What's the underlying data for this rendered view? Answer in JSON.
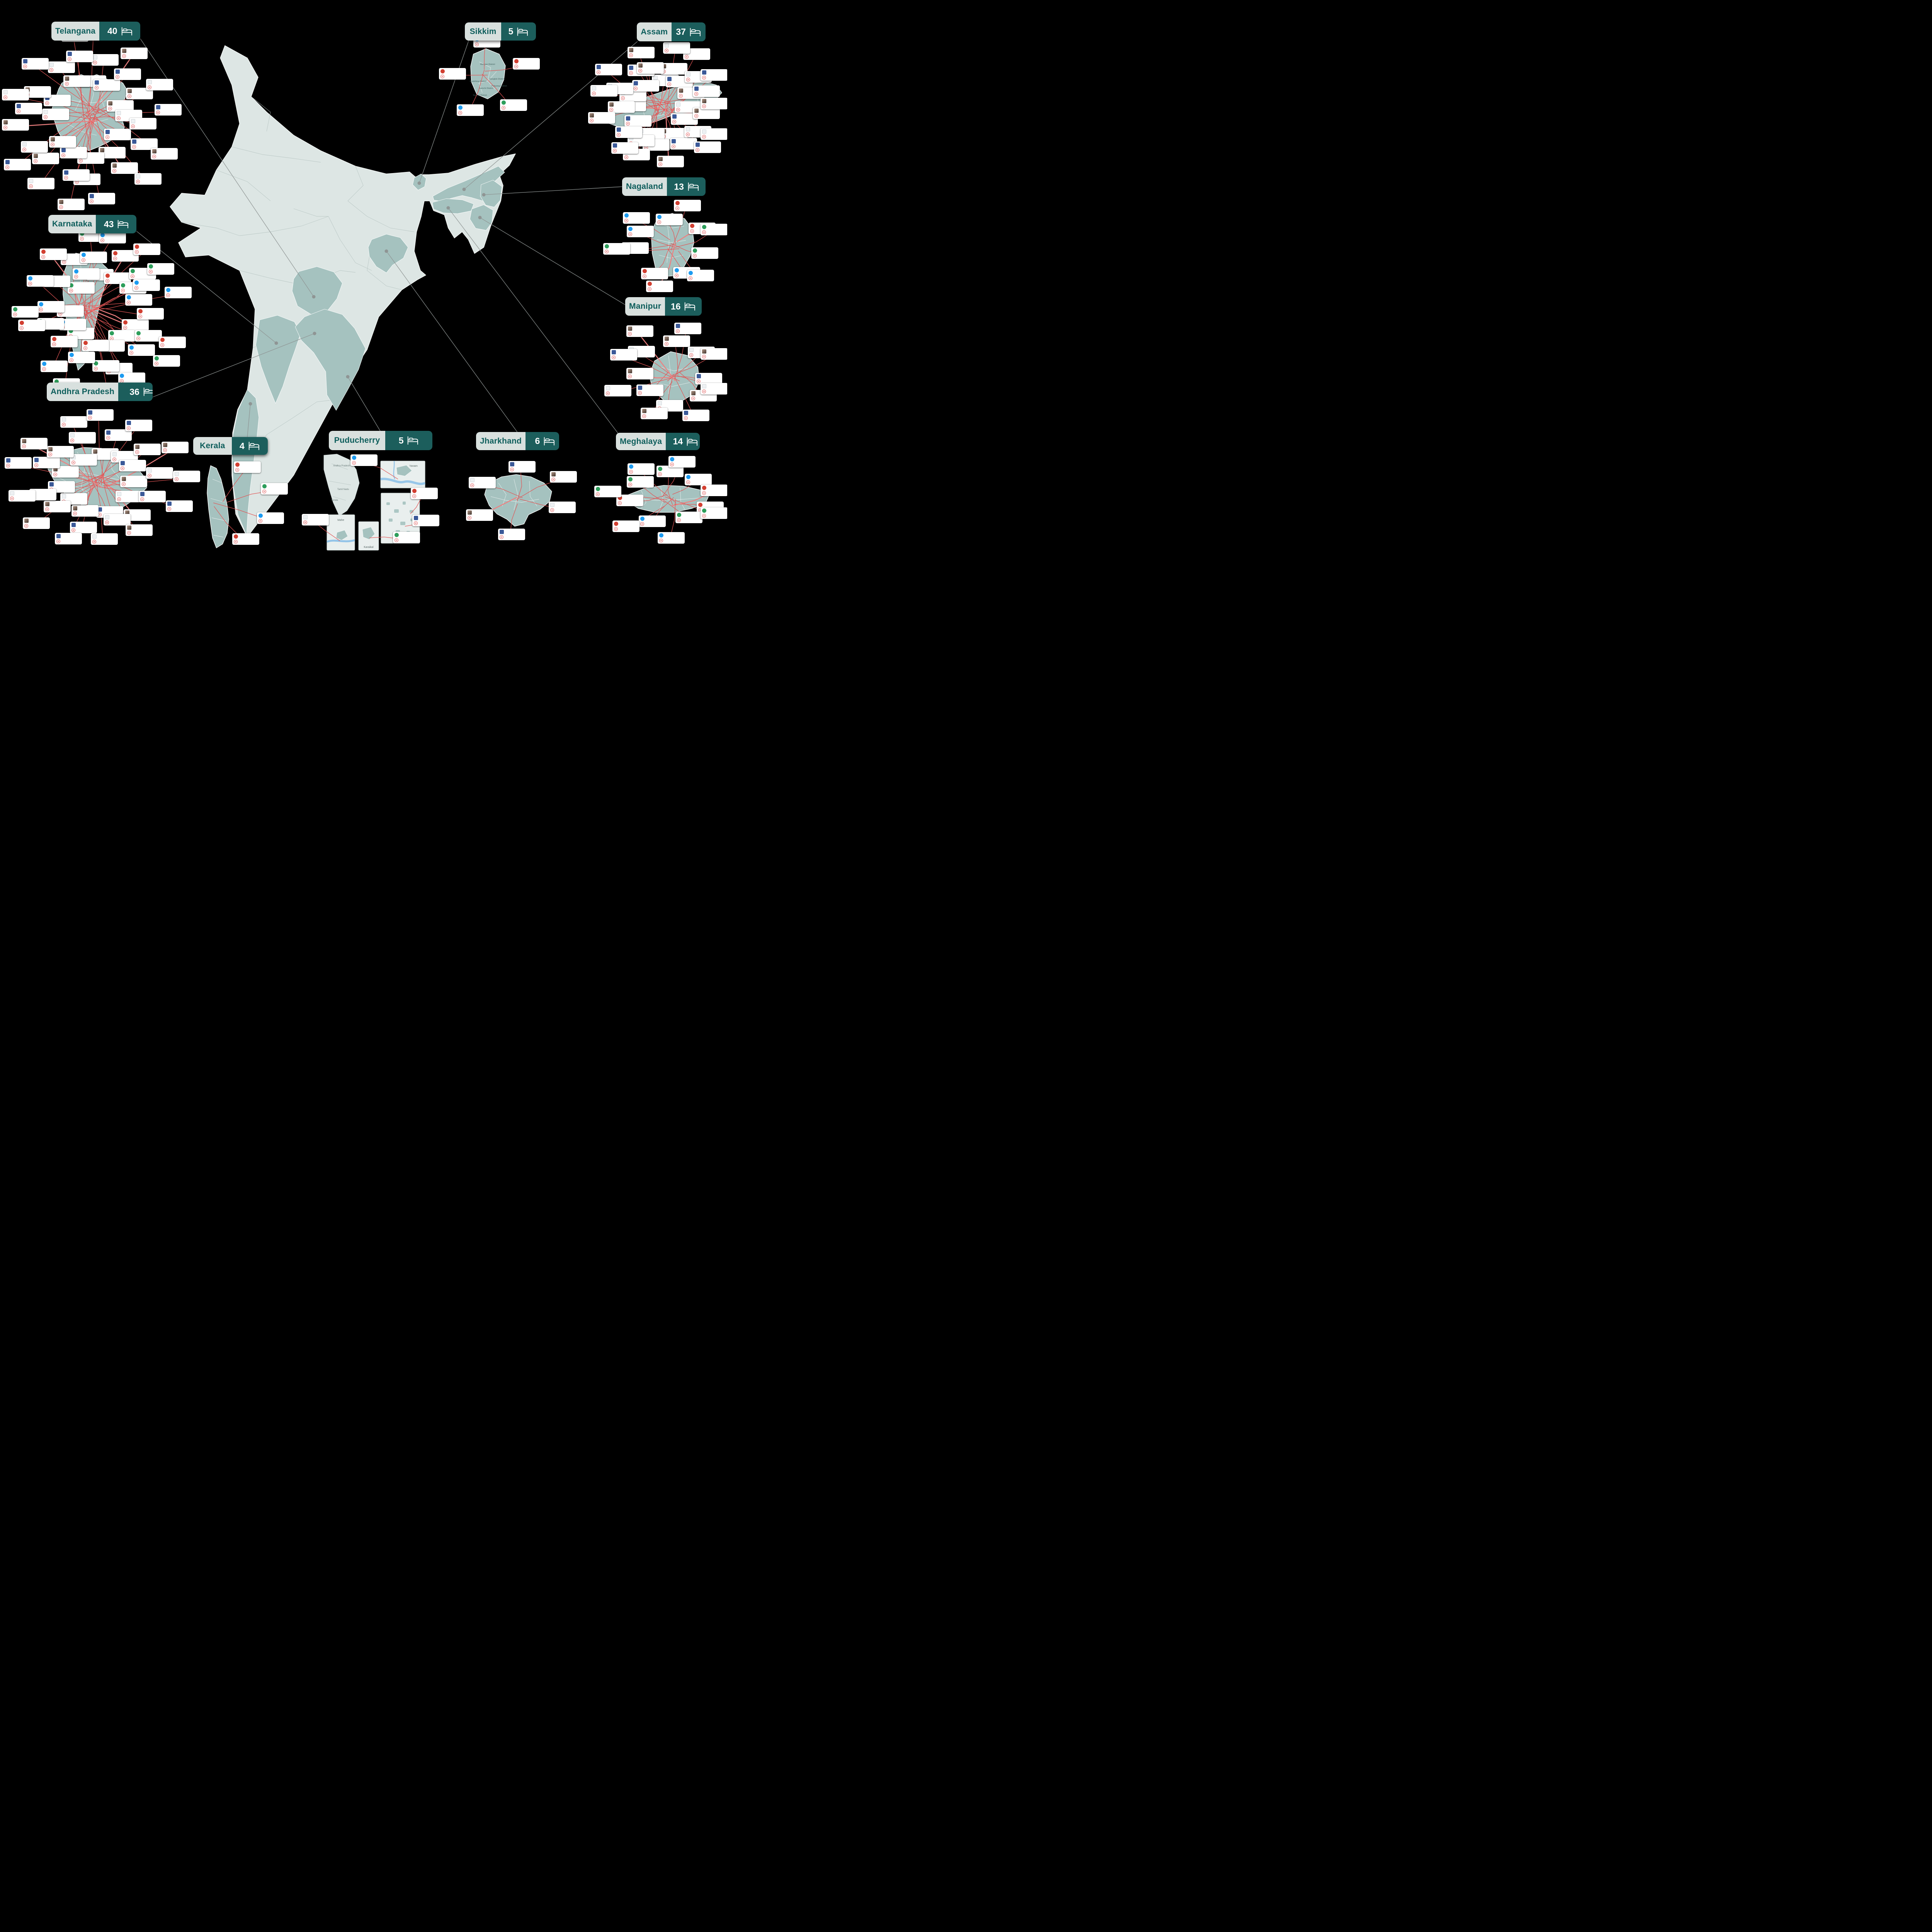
{
  "canvas": {
    "background": "#000000"
  },
  "colors": {
    "badge_light": "#d8e0de",
    "badge_dark": "#1c5e5c",
    "badge_text": "#0e5e5c",
    "count_text": "#ffffff",
    "map_base": "#dde6e4",
    "map_highlight": "#a5c2bf",
    "map_border": "#f4f7f6",
    "map_inner_border": "#b4c2c0",
    "connector_gray": "#8f9594",
    "connector_red": "#e25555",
    "card_bg": "#ffffff",
    "stamp_red": "#e05a5a"
  },
  "unit_icon": "bed-icon",
  "states": [
    {
      "id": "telangana",
      "name": "Telangana",
      "beds": 40
    },
    {
      "id": "karnataka",
      "name": "Karnataka",
      "beds": 43
    },
    {
      "id": "andhra-pradesh",
      "name": "Andhra Pradesh",
      "beds": 36
    },
    {
      "id": "kerala",
      "name": "Kerala",
      "beds": 4
    },
    {
      "id": "puducherry",
      "name": "Puducherry",
      "beds": 5
    },
    {
      "id": "jharkhand",
      "name": "Jharkhand",
      "beds": 6
    },
    {
      "id": "sikkim",
      "name": "Sikkim",
      "beds": 5
    },
    {
      "id": "assam",
      "name": "Assam",
      "beds": 37
    },
    {
      "id": "nagaland",
      "name": "Nagaland",
      "beds": 13
    },
    {
      "id": "manipur",
      "name": "Manipur",
      "beds": 16
    },
    {
      "id": "meghalaya",
      "name": "Meghalaya",
      "beds": 14
    }
  ],
  "sikkim_districts": [
    "Mangan District",
    "Gyalshing District",
    "Gangtok District",
    "Namchi District",
    "Pakyong District",
    "Soreng District"
  ],
  "puducherry_tiles": [
    "Yanam",
    "Mahe",
    "Karaikal",
    "Puducherry"
  ],
  "puducherry_locator_labels": [
    "Andhra Pradesh",
    "Tamil Nadu",
    "Kerala"
  ]
}
